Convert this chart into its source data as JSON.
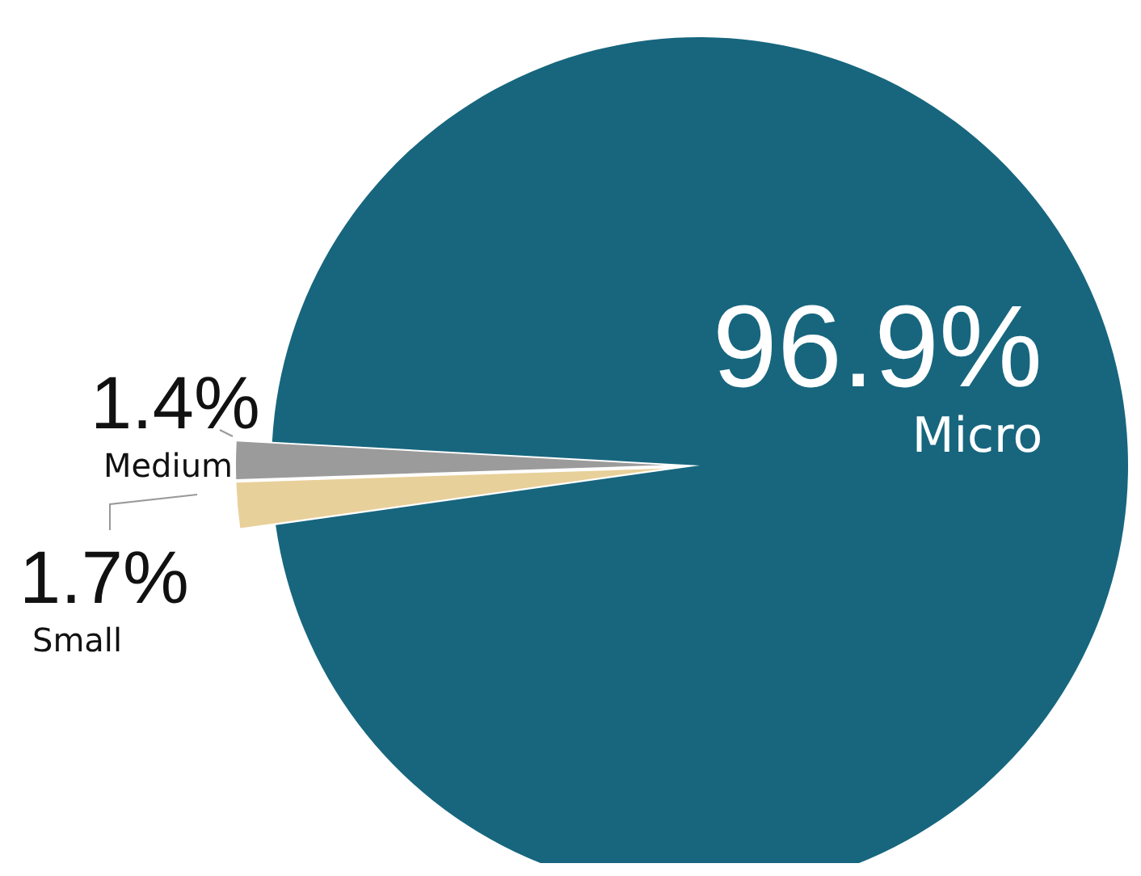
{
  "chart_data": {
    "type": "pie",
    "categories": [
      "Small",
      "Medium",
      "Micro"
    ],
    "values": [
      1.7,
      1.4,
      96.9
    ],
    "colors": [
      "#e8d09a",
      "#9b9b9b",
      "#17667e"
    ],
    "value_labels": [
      "1.7%",
      "1.4%",
      "96.9%"
    ],
    "legend": false
  }
}
